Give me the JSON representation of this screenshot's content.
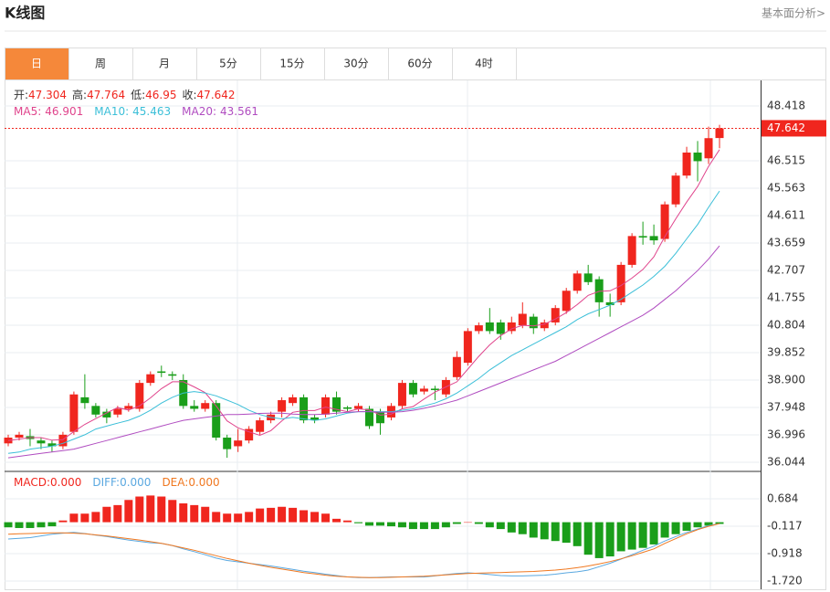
{
  "header": {
    "title": "K线图",
    "link": "基本面分析>"
  },
  "tabs": [
    "日",
    "周",
    "月",
    "5分",
    "15分",
    "30分",
    "60分",
    "4时"
  ],
  "active_tab": "日",
  "chart_data": [
    {
      "type": "candlestick",
      "open": [
        36.7,
        36.9,
        36.95,
        36.8,
        36.7,
        36.6,
        37.1,
        38.3,
        38.0,
        37.8,
        37.7,
        37.9,
        37.9,
        38.8,
        39.2,
        39.1,
        38.9,
        38.0,
        37.9,
        38.1,
        36.9,
        36.6,
        36.8,
        37.1,
        37.5,
        37.8,
        38.1,
        38.3,
        37.6,
        37.7,
        38.3,
        37.95,
        37.9,
        37.9,
        37.8,
        37.6,
        38.0,
        38.8,
        38.5,
        38.6,
        38.4,
        39.0,
        39.5,
        40.6,
        40.9,
        40.9,
        40.6,
        40.8,
        41.1,
        40.7,
        40.9,
        41.3,
        42.0,
        42.6,
        42.4,
        41.6,
        41.6,
        42.9,
        43.9,
        43.9,
        43.8,
        45.0,
        46.0,
        46.8,
        46.6,
        47.304
      ],
      "high": [
        37.0,
        37.1,
        37.2,
        36.9,
        36.8,
        37.1,
        38.5,
        39.1,
        38.1,
        37.9,
        38.0,
        38.1,
        38.9,
        39.2,
        39.4,
        39.2,
        39.1,
        38.2,
        38.2,
        38.2,
        37.0,
        37.2,
        37.3,
        37.6,
        37.8,
        38.3,
        38.4,
        38.4,
        37.7,
        38.4,
        38.5,
        38.0,
        38.1,
        38.0,
        37.9,
        38.1,
        38.9,
        38.9,
        38.7,
        38.7,
        39.0,
        39.9,
        40.7,
        40.9,
        41.4,
        41.0,
        41.1,
        41.6,
        41.2,
        41.0,
        41.5,
        42.1,
        42.7,
        42.9,
        42.5,
        41.9,
        43.0,
        44.0,
        44.4,
        44.3,
        45.1,
        46.1,
        47.0,
        47.2,
        47.7,
        47.764
      ],
      "low": [
        36.6,
        36.8,
        36.6,
        36.5,
        36.4,
        36.5,
        37.0,
        37.9,
        37.6,
        37.4,
        37.6,
        37.8,
        37.8,
        38.7,
        39.0,
        38.9,
        37.9,
        37.8,
        37.8,
        36.8,
        36.2,
        36.4,
        36.7,
        37.0,
        37.4,
        37.6,
        38.0,
        37.4,
        37.4,
        37.6,
        37.7,
        37.8,
        37.8,
        37.2,
        37.0,
        37.5,
        37.9,
        38.3,
        38.4,
        38.2,
        38.3,
        38.9,
        39.4,
        40.5,
        40.5,
        40.3,
        40.5,
        40.7,
        40.5,
        40.6,
        40.8,
        41.2,
        41.9,
        42.2,
        41.1,
        41.1,
        41.5,
        42.8,
        43.6,
        43.6,
        43.7,
        44.9,
        45.9,
        45.8,
        46.4,
        46.95
      ],
      "close": [
        36.9,
        37.0,
        36.85,
        36.7,
        36.6,
        37.0,
        38.4,
        38.1,
        37.7,
        37.6,
        37.9,
        38.0,
        38.8,
        39.1,
        39.15,
        39.05,
        38.0,
        37.9,
        38.1,
        36.9,
        36.5,
        36.8,
        37.2,
        37.5,
        37.7,
        38.2,
        38.3,
        37.5,
        37.5,
        38.3,
        37.8,
        37.9,
        38.0,
        37.3,
        37.4,
        38.0,
        38.8,
        38.4,
        38.6,
        38.55,
        38.9,
        39.7,
        40.6,
        40.8,
        40.6,
        40.5,
        40.9,
        41.2,
        40.7,
        40.9,
        41.4,
        42.0,
        42.6,
        42.3,
        41.6,
        41.5,
        42.9,
        43.9,
        43.85,
        43.75,
        45.0,
        46.0,
        46.8,
        46.5,
        47.3,
        47.642
      ],
      "up_color": "#f0261e",
      "down_color": "#1a9e1a",
      "quote_labels": [
        "开:",
        "高:",
        "低:",
        "收:"
      ],
      "series": [
        {
          "name": "MA5:",
          "color": "#e0448c",
          "values": [
            36.8,
            36.85,
            36.9,
            36.9,
            36.81,
            36.83,
            37.11,
            37.36,
            37.56,
            37.76,
            37.94,
            37.86,
            38.0,
            38.28,
            38.6,
            38.84,
            38.84,
            38.66,
            38.46,
            38.0,
            37.48,
            37.24,
            37.1,
            36.98,
            37.14,
            37.48,
            37.78,
            37.84,
            37.84,
            37.96,
            37.88,
            37.8,
            37.9,
            37.86,
            37.68,
            37.72,
            37.9,
            37.98,
            38.24,
            38.48,
            38.66,
            38.84,
            39.28,
            39.72,
            40.12,
            40.44,
            40.68,
            40.8,
            40.78,
            40.84,
            41.02,
            41.24,
            41.52,
            41.84,
            41.98,
            42.0,
            42.18,
            42.44,
            42.74,
            43.18,
            43.88,
            44.5,
            45.08,
            45.62,
            46.32,
            46.901
          ]
        },
        {
          "name": "MA10:",
          "color": "#3bbfd8",
          "values": [
            36.35,
            36.4,
            36.5,
            36.55,
            36.6,
            36.7,
            36.85,
            37.0,
            37.2,
            37.3,
            37.4,
            37.5,
            37.65,
            37.85,
            38.1,
            38.3,
            38.45,
            38.5,
            38.45,
            38.35,
            38.2,
            38.05,
            37.85,
            37.7,
            37.6,
            37.55,
            37.6,
            37.55,
            37.5,
            37.55,
            37.65,
            37.75,
            37.8,
            37.8,
            37.8,
            37.8,
            37.85,
            37.9,
            38.0,
            38.1,
            38.25,
            38.45,
            38.7,
            38.95,
            39.25,
            39.5,
            39.75,
            39.95,
            40.15,
            40.35,
            40.55,
            40.75,
            41.0,
            41.2,
            41.35,
            41.5,
            41.7,
            41.95,
            42.2,
            42.5,
            42.85,
            43.3,
            43.8,
            44.3,
            44.9,
            45.463
          ]
        },
        {
          "name": "MA20:",
          "color": "#b04cc0",
          "values": [
            36.2,
            36.25,
            36.3,
            36.35,
            36.4,
            36.45,
            36.5,
            36.6,
            36.7,
            36.8,
            36.9,
            37.0,
            37.1,
            37.2,
            37.3,
            37.4,
            37.5,
            37.55,
            37.6,
            37.65,
            37.7,
            37.7,
            37.72,
            37.74,
            37.75,
            37.75,
            37.72,
            37.7,
            37.7,
            37.72,
            37.75,
            37.78,
            37.8,
            37.8,
            37.78,
            37.78,
            37.8,
            37.85,
            37.92,
            38.0,
            38.1,
            38.2,
            38.35,
            38.5,
            38.65,
            38.8,
            38.95,
            39.1,
            39.25,
            39.4,
            39.55,
            39.75,
            39.95,
            40.15,
            40.35,
            40.55,
            40.75,
            40.95,
            41.15,
            41.4,
            41.7,
            42.0,
            42.35,
            42.7,
            43.1,
            43.561
          ]
        }
      ],
      "ylim": [
        35.758,
        49.306
      ],
      "yticks": [
        48.418,
        46.515,
        45.563,
        44.611,
        43.659,
        42.707,
        41.755,
        40.804,
        39.852,
        {
          "value": 38.9,
          "label": "38.900"
        },
        37.948,
        36.996,
        36.044
      ],
      "grid": true
    },
    {
      "type": "macd",
      "histogram": {
        "name": "MACD:",
        "readout": "0.000",
        "up_color": "#f0261e",
        "down_color": "#1a9e1a",
        "values": [
          -0.15,
          -0.17,
          -0.17,
          -0.15,
          -0.12,
          0.05,
          0.25,
          0.25,
          0.3,
          0.45,
          0.5,
          0.65,
          0.75,
          0.78,
          0.75,
          0.65,
          0.55,
          0.5,
          0.45,
          0.3,
          0.25,
          0.25,
          0.3,
          0.4,
          0.42,
          0.45,
          0.42,
          0.35,
          0.3,
          0.25,
          0.1,
          0.05,
          -0.03,
          -0.1,
          -0.1,
          -0.12,
          -0.15,
          -0.2,
          -0.2,
          -0.2,
          -0.15,
          -0.05,
          0.0,
          -0.05,
          -0.15,
          -0.2,
          -0.3,
          -0.35,
          -0.45,
          -0.5,
          -0.55,
          -0.6,
          -0.7,
          -0.95,
          -1.05,
          -1.0,
          -0.85,
          -0.8,
          -0.75,
          -0.65,
          -0.45,
          -0.35,
          -0.25,
          -0.15,
          -0.1,
          -0.05
        ]
      },
      "series": [
        {
          "name": "DIFF:",
          "readout": "0.000",
          "color": "#5aa8e0",
          "values": [
            -0.49,
            -0.47,
            -0.45,
            -0.4,
            -0.35,
            -0.32,
            -0.3,
            -0.33,
            -0.38,
            -0.42,
            -0.47,
            -0.52,
            -0.56,
            -0.6,
            -0.62,
            -0.68,
            -0.78,
            -0.86,
            -0.95,
            -1.05,
            -1.12,
            -1.16,
            -1.2,
            -1.24,
            -1.28,
            -1.33,
            -1.38,
            -1.43,
            -1.47,
            -1.52,
            -1.56,
            -1.6,
            -1.62,
            -1.62,
            -1.61,
            -1.6,
            -1.6,
            -1.6,
            -1.6,
            -1.57,
            -1.53,
            -1.5,
            -1.48,
            -1.5,
            -1.53,
            -1.56,
            -1.57,
            -1.57,
            -1.56,
            -1.55,
            -1.52,
            -1.48,
            -1.45,
            -1.4,
            -1.3,
            -1.2,
            -1.08,
            -0.95,
            -0.82,
            -0.7,
            -0.55,
            -0.42,
            -0.3,
            -0.2,
            -0.1,
            -0.04
          ]
        },
        {
          "name": "DEA:",
          "readout": "0.000",
          "color": "#f07820",
          "values": [
            -0.35,
            -0.34,
            -0.33,
            -0.32,
            -0.31,
            -0.31,
            -0.32,
            -0.34,
            -0.37,
            -0.4,
            -0.44,
            -0.48,
            -0.52,
            -0.57,
            -0.62,
            -0.68,
            -0.75,
            -0.82,
            -0.9,
            -0.98,
            -1.06,
            -1.13,
            -1.2,
            -1.26,
            -1.32,
            -1.37,
            -1.42,
            -1.47,
            -1.51,
            -1.55,
            -1.58,
            -1.6,
            -1.61,
            -1.62,
            -1.62,
            -1.61,
            -1.6,
            -1.59,
            -1.58,
            -1.56,
            -1.54,
            -1.52,
            -1.5,
            -1.49,
            -1.48,
            -1.47,
            -1.46,
            -1.45,
            -1.44,
            -1.42,
            -1.4,
            -1.37,
            -1.33,
            -1.28,
            -1.22,
            -1.15,
            -1.07,
            -0.98,
            -0.88,
            -0.78,
            -0.62,
            -0.48,
            -0.34,
            -0.22,
            -0.12,
            -0.04
          ]
        }
      ],
      "ylim": [
        -1.96,
        1.458
      ],
      "yticks": [
        0.684,
        -0.117,
        -0.918,
        {
          "value": -1.72,
          "label": "-1.720"
        }
      ],
      "grid": true
    }
  ]
}
